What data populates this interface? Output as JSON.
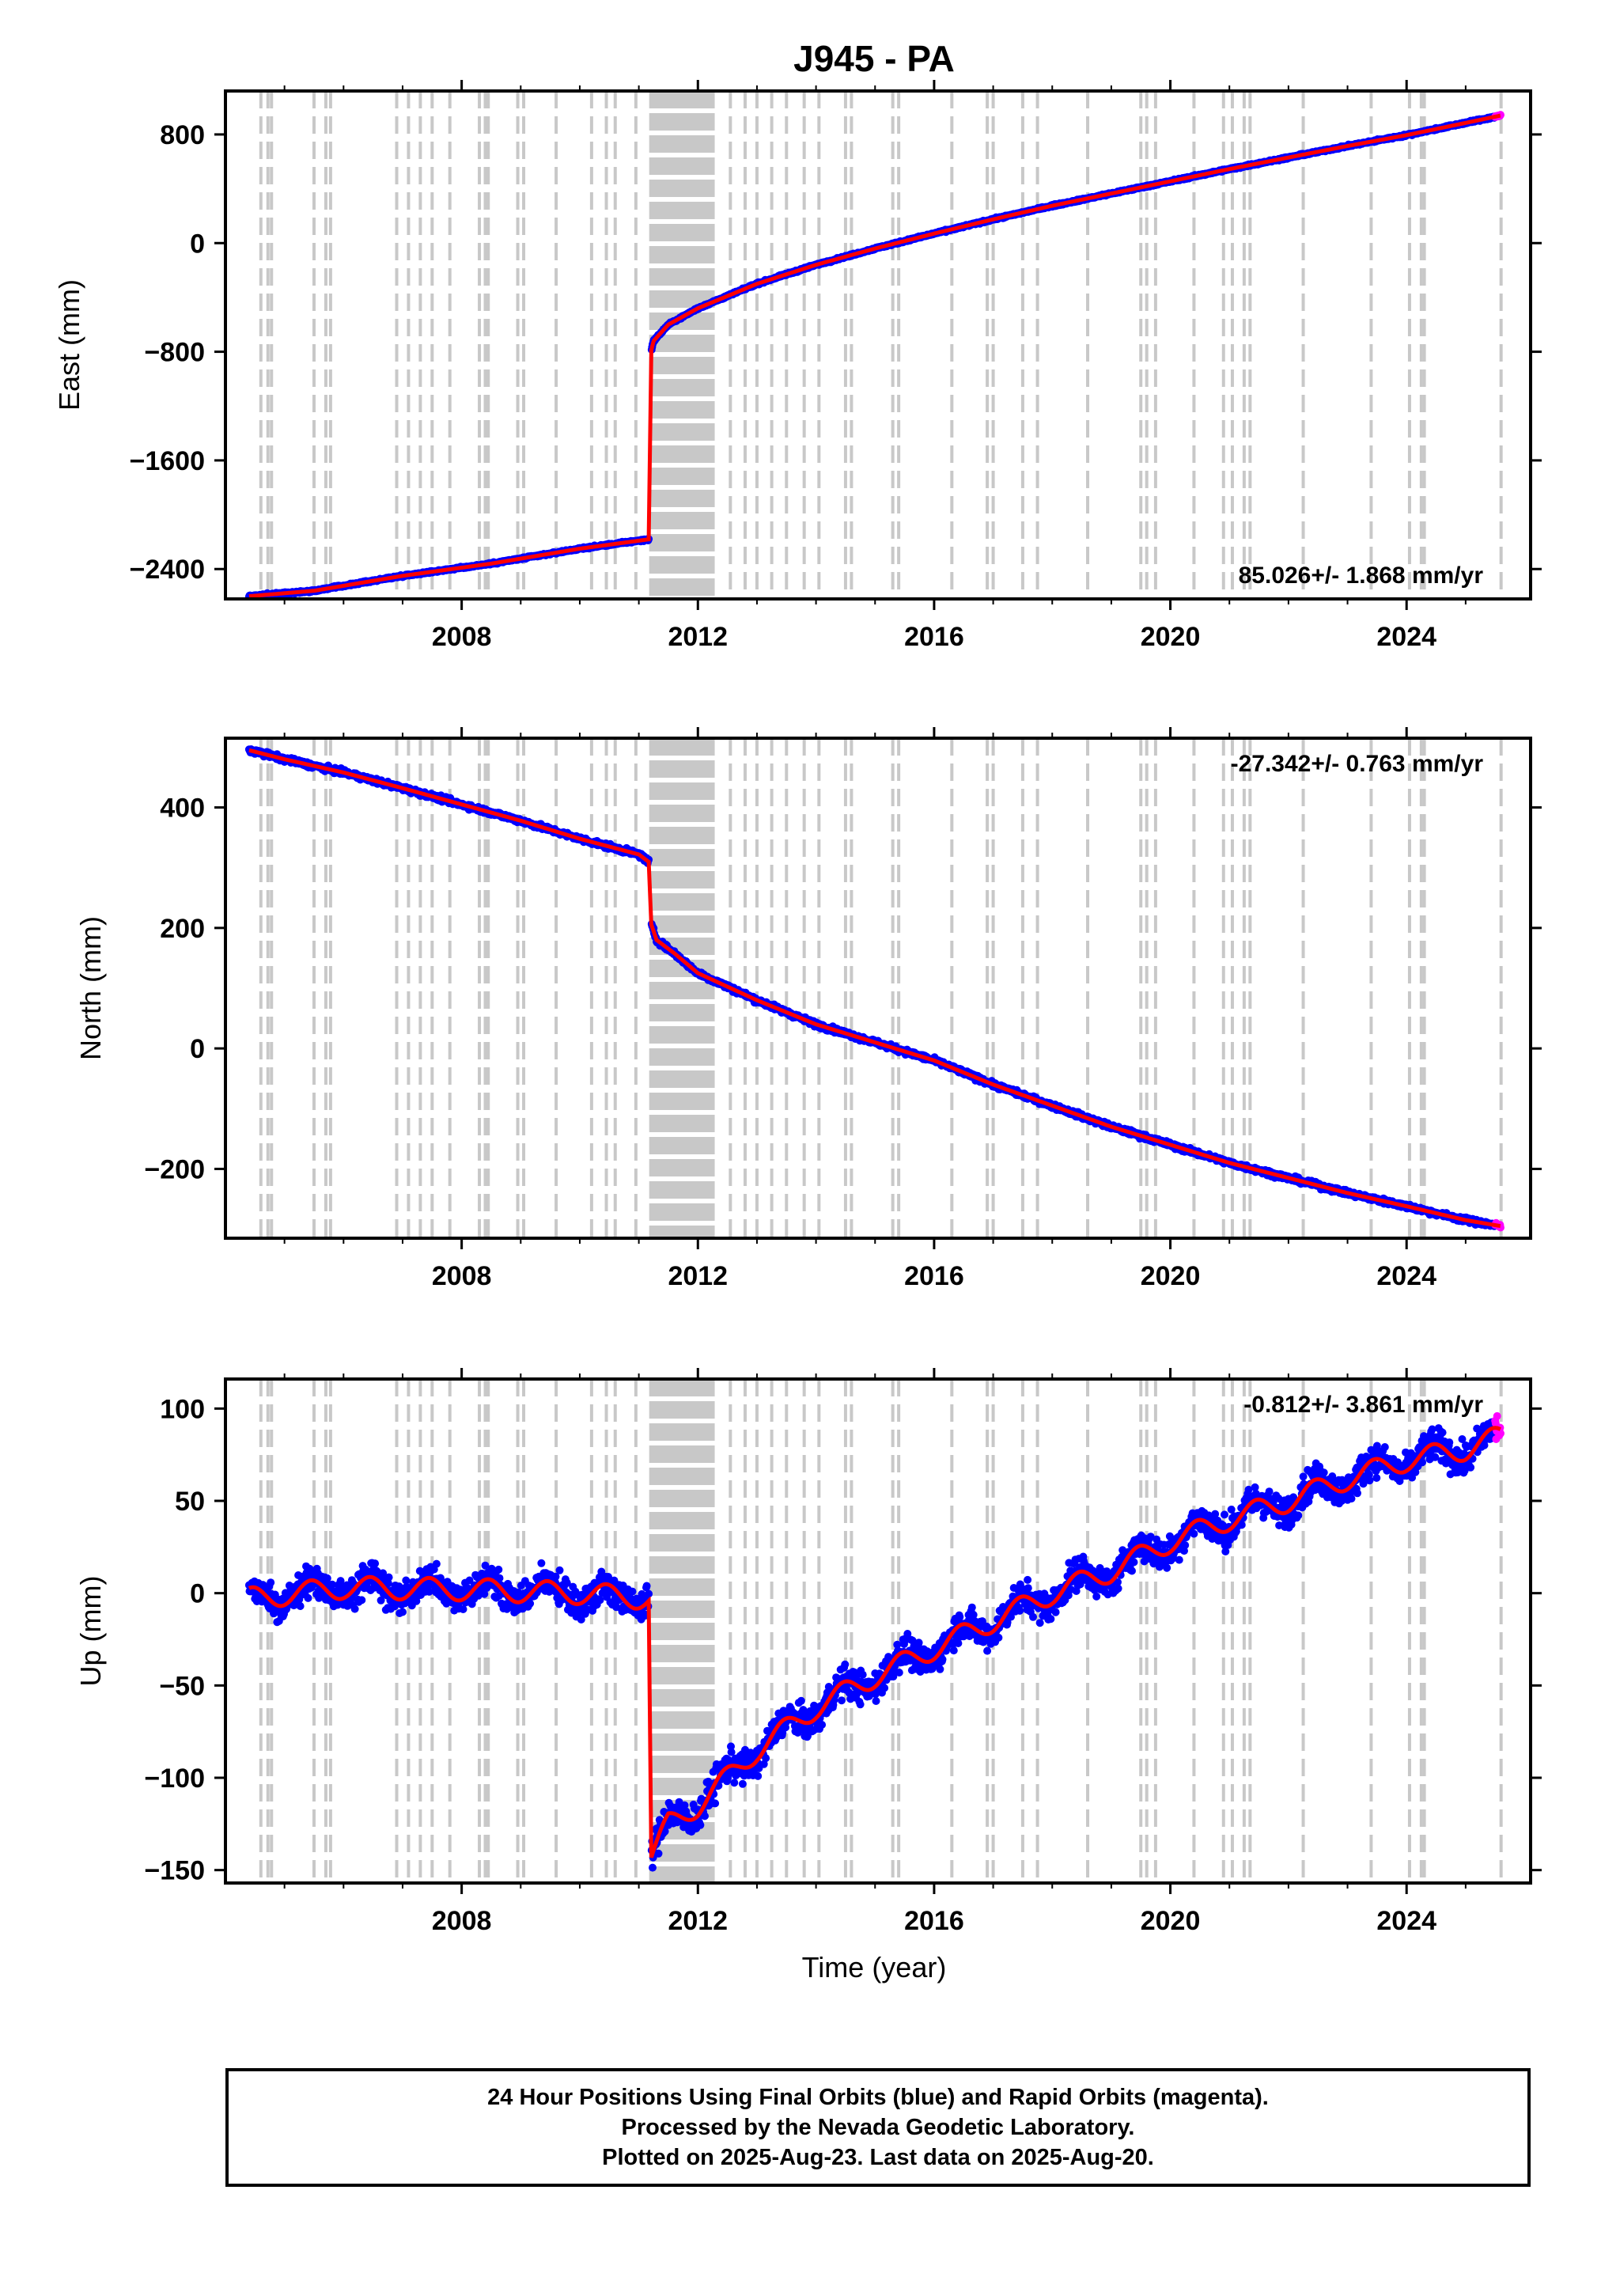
{
  "title": "J945 - PA",
  "xlabel": "Time (year)",
  "colors": {
    "final": "#0000ff",
    "rapid": "#ff00ff",
    "model": "#ff0000",
    "steps": "#c8c8c8"
  },
  "caption": [
    "24 Hour Positions Using Final Orbits (blue) and Rapid Orbits (magenta).",
    "Processed by the Nevada Geodetic Laboratory.",
    "Plotted on 2025-Aug-23. Last data on 2025-Aug-20."
  ],
  "chart_data": [
    {
      "type": "scatter",
      "ylabel": "East (mm)",
      "velocity_text": "85.026+/- 1.868 mm/yr",
      "velocity_position": "bottom-right",
      "xlim": [
        2004.0,
        2026.1
      ],
      "ylim": [
        -2620,
        1120
      ],
      "xticks": [
        2008,
        2012,
        2016,
        2020,
        2024
      ],
      "yticks": [
        -2400,
        -1600,
        -800,
        0,
        800
      ],
      "trend_points": [
        [
          2004.4,
          -2600
        ],
        [
          2005.5,
          -2560
        ],
        [
          2007.0,
          -2450
        ],
        [
          2008.5,
          -2360
        ],
        [
          2010.0,
          -2250
        ],
        [
          2011.19,
          -2180
        ],
        [
          2011.19,
          -830
        ],
        [
          2011.25,
          -720
        ],
        [
          2011.5,
          -600
        ],
        [
          2012.0,
          -480
        ],
        [
          2013.0,
          -300
        ],
        [
          2014.0,
          -160
        ],
        [
          2015.0,
          -40
        ],
        [
          2016.0,
          70
        ],
        [
          2017.0,
          175
        ],
        [
          2018.0,
          275
        ],
        [
          2019.0,
          365
        ],
        [
          2020.0,
          455
        ],
        [
          2021.0,
          545
        ],
        [
          2022.0,
          630
        ],
        [
          2023.0,
          715
        ],
        [
          2024.0,
          795
        ],
        [
          2025.0,
          885
        ],
        [
          2025.6,
          940
        ]
      ],
      "noise_mm": 5
    },
    {
      "type": "scatter",
      "ylabel": "North (mm)",
      "velocity_text": "-27.342+/- 0.763 mm/yr",
      "velocity_position": "top-right",
      "xlim": [
        2004.0,
        2026.1
      ],
      "ylim": [
        -315,
        515
      ],
      "xticks": [
        2008,
        2012,
        2016,
        2020,
        2024
      ],
      "yticks": [
        -200,
        0,
        200,
        400
      ],
      "trend_points": [
        [
          2004.4,
          495
        ],
        [
          2005.0,
          480
        ],
        [
          2006.0,
          458
        ],
        [
          2007.0,
          432
        ],
        [
          2008.0,
          405
        ],
        [
          2009.0,
          378
        ],
        [
          2010.0,
          348
        ],
        [
          2011.0,
          322
        ],
        [
          2011.19,
          308
        ],
        [
          2011.19,
          212
        ],
        [
          2011.3,
          180
        ],
        [
          2011.6,
          158
        ],
        [
          2012.0,
          125
        ],
        [
          2013.0,
          80
        ],
        [
          2014.0,
          40
        ],
        [
          2015.0,
          10
        ],
        [
          2016.0,
          -20
        ],
        [
          2017.0,
          -60
        ],
        [
          2018.0,
          -95
        ],
        [
          2019.0,
          -130
        ],
        [
          2020.0,
          -160
        ],
        [
          2021.0,
          -190
        ],
        [
          2022.0,
          -215
        ],
        [
          2023.0,
          -240
        ],
        [
          2024.0,
          -262
        ],
        [
          2025.0,
          -285
        ],
        [
          2025.6,
          -295
        ]
      ],
      "noise_mm": 3
    },
    {
      "type": "scatter",
      "ylabel": "Up (mm)",
      "velocity_text": "-0.812+/- 3.861 mm/yr",
      "velocity_position": "top-right",
      "xlim": [
        2004.0,
        2026.1
      ],
      "ylim": [
        -157,
        116
      ],
      "xticks": [
        2008,
        2012,
        2016,
        2020,
        2024
      ],
      "yticks": [
        -150,
        -100,
        -50,
        0,
        50,
        100
      ],
      "trend_points": [
        [
          2004.4,
          -3
        ],
        [
          2006.0,
          3
        ],
        [
          2008.0,
          2
        ],
        [
          2010.0,
          0
        ],
        [
          2011.19,
          -3
        ],
        [
          2011.19,
          -145
        ],
        [
          2011.5,
          -125
        ],
        [
          2012.0,
          -115
        ],
        [
          2013.0,
          -85
        ],
        [
          2014.0,
          -62
        ],
        [
          2015.0,
          -45
        ],
        [
          2016.0,
          -30
        ],
        [
          2017.0,
          -15
        ],
        [
          2018.0,
          0
        ],
        [
          2019.0,
          12
        ],
        [
          2020.0,
          28
        ],
        [
          2021.0,
          40
        ],
        [
          2022.0,
          50
        ],
        [
          2023.0,
          62
        ],
        [
          2024.0,
          72
        ],
        [
          2025.0,
          78
        ],
        [
          2025.6,
          85
        ]
      ],
      "seasonal_amplitude_mm": 6,
      "noise_mm": 6
    }
  ],
  "steps": {
    "dense_range": [
      2011.19,
      2012.27
    ],
    "dashed_years": [
      2004.6,
      2004.72,
      2004.78,
      2005.5,
      2005.7,
      2005.78,
      2006.9,
      2007.1,
      2007.3,
      2007.5,
      2007.8,
      2008.3,
      2008.4,
      2008.45,
      2008.95,
      2009.05,
      2009.6,
      2010.2,
      2010.45,
      2010.6,
      2010.95,
      2012.55,
      2012.8,
      2013.0,
      2013.25,
      2013.5,
      2013.8,
      2014.05,
      2014.5,
      2014.6,
      2015.3,
      2015.4,
      2016.3,
      2016.9,
      2017.0,
      2017.5,
      2017.75,
      2018.6,
      2019.5,
      2019.6,
      2019.75,
      2020.4,
      2020.9,
      2021.05,
      2021.25,
      2021.35,
      2022.25,
      2023.4,
      2024.05,
      2024.25,
      2024.3,
      2025.6
    ]
  }
}
